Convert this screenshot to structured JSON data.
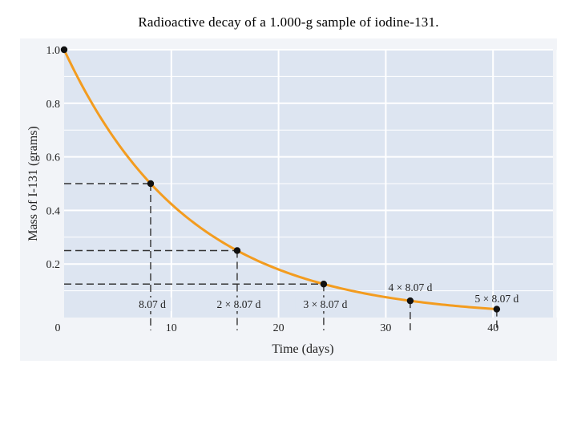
{
  "title": "Radioactive decay of a 1.000-g sample of iodine-131.",
  "colors": {
    "plot_bg": "#dde5f1",
    "grid": "#ffffff",
    "curve": "#f39c1f",
    "points": "#111111",
    "dashes": "#333333"
  },
  "chart_data": {
    "type": "line",
    "xlabel": "Time (days)",
    "ylabel": "Mass of I-131 (grams)",
    "xlim": [
      0,
      46
    ],
    "ylim": [
      0,
      1.0
    ],
    "grid": true,
    "x_ticks": [
      0,
      10,
      20,
      30,
      40
    ],
    "x_tick_labels": [
      "0",
      "10",
      "20",
      "30",
      "40"
    ],
    "y_ticks": [
      0.2,
      0.4,
      0.6,
      0.8,
      1.0
    ],
    "y_tick_labels": [
      "0.2",
      "0.4",
      "0.6",
      "0.8",
      "1.0"
    ],
    "half_life_days": 8.07,
    "initial_mass_g": 1.0,
    "points": [
      {
        "x": 0,
        "y": 1.0
      },
      {
        "x": 8.07,
        "y": 0.5
      },
      {
        "x": 16.14,
        "y": 0.25
      },
      {
        "x": 24.21,
        "y": 0.125
      },
      {
        "x": 32.28,
        "y": 0.0625
      },
      {
        "x": 40.35,
        "y": 0.03125
      }
    ],
    "annotations": [
      {
        "x": 8.07,
        "text": "8.07 d"
      },
      {
        "x": 16.14,
        "text": "2 × 8.07 d"
      },
      {
        "x": 24.21,
        "text": "3 × 8.07 d"
      },
      {
        "x": 32.28,
        "text": "4 × 8.07 d"
      },
      {
        "x": 40.35,
        "text": "5 × 8.07 d"
      }
    ]
  }
}
